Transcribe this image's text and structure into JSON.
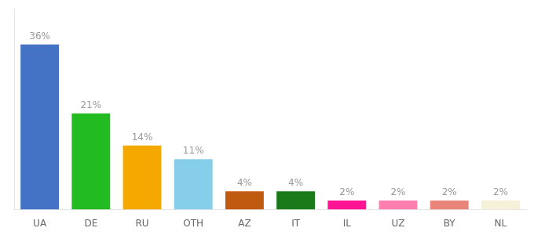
{
  "chart_data": {
    "type": "bar",
    "categories": [
      "UA",
      "DE",
      "RU",
      "OTH",
      "AZ",
      "IT",
      "IL",
      "UZ",
      "BY",
      "NL"
    ],
    "values": [
      36,
      21,
      14,
      11,
      4,
      4,
      2,
      2,
      2,
      2
    ],
    "value_labels": [
      "36%",
      "21%",
      "14%",
      "11%",
      "4%",
      "4%",
      "2%",
      "2%",
      "2%",
      "2%"
    ],
    "colors": [
      "#4472c4",
      "#22bb22",
      "#f5a800",
      "#87ceeb",
      "#c05a10",
      "#1a7a1a",
      "#ff1493",
      "#ff7eb0",
      "#e8847a",
      "#f5f0d8"
    ],
    "ylim": [
      0,
      44
    ],
    "data_labels": true,
    "tick_labels": "x",
    "grid": false
  }
}
